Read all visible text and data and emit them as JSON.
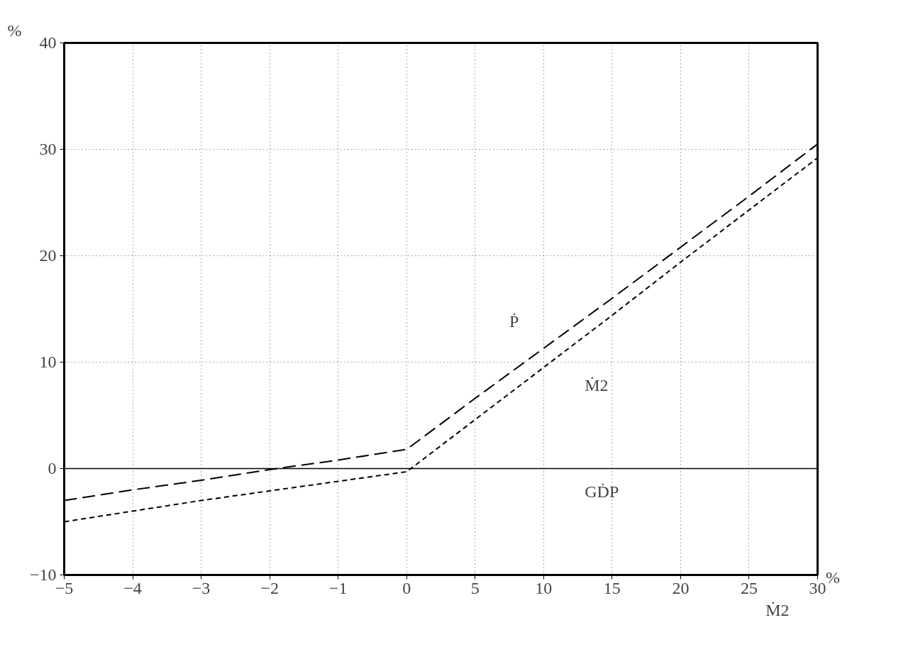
{
  "chart_data": {
    "type": "line",
    "ylabel": "%",
    "xlabel": "Ṁ2",
    "categories": [
      "−5",
      "−4",
      "−3",
      "−2",
      "−1",
      "0",
      "5",
      "10",
      "15",
      "20",
      "25",
      "30"
    ],
    "series": [
      {
        "color": "#000000",
        "line_style": "dashed",
        "values": [
          -3,
          -2,
          -1.1,
          -0.1,
          0.8,
          1.8,
          6.6,
          11.3,
          16,
          20.8,
          25.6,
          30.5
        ]
      },
      {
        "color": "#000000",
        "line_style": "dotted",
        "values": [
          -5,
          -4,
          -3,
          -2.1,
          -1.2,
          -0.3,
          4.6,
          9.5,
          14.4,
          19.4,
          24.3,
          29.2
        ]
      }
    ],
    "ylim": [
      -10,
      40
    ],
    "yticks": [
      -10,
      0,
      10,
      20,
      30,
      40
    ],
    "grid": true,
    "marker": "none",
    "ref_lines": [
      {
        "axis": "y",
        "value": 0,
        "color": "#000000",
        "line_style": "solid"
      }
    ],
    "annotations": [
      "Ṗ",
      "Ṁ2",
      "GḊP",
      "%"
    ]
  }
}
